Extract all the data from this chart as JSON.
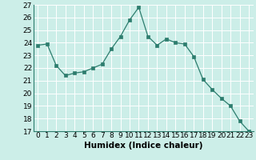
{
  "x": [
    0,
    1,
    2,
    3,
    4,
    5,
    6,
    7,
    8,
    9,
    10,
    11,
    12,
    13,
    14,
    15,
    16,
    17,
    18,
    19,
    20,
    21,
    22,
    23
  ],
  "y": [
    23.8,
    23.9,
    22.2,
    21.4,
    21.6,
    21.7,
    22.0,
    22.3,
    23.5,
    24.5,
    25.8,
    26.8,
    24.5,
    23.8,
    24.3,
    24.0,
    23.9,
    22.9,
    21.1,
    20.3,
    19.6,
    19.0,
    17.8,
    17.0
  ],
  "xlabel": "Humidex (Indice chaleur)",
  "ylim": [
    17,
    27
  ],
  "xlim_min": -0.5,
  "xlim_max": 23.5,
  "yticks": [
    17,
    18,
    19,
    20,
    21,
    22,
    23,
    24,
    25,
    26,
    27
  ],
  "xticks": [
    0,
    1,
    2,
    3,
    4,
    5,
    6,
    7,
    8,
    9,
    10,
    11,
    12,
    13,
    14,
    15,
    16,
    17,
    18,
    19,
    20,
    21,
    22,
    23
  ],
  "line_color": "#2d7d6e",
  "marker_color": "#2d7d6e",
  "bg_color": "#cceee8",
  "grid_color": "#ffffff",
  "tick_fontsize": 6.5,
  "xlabel_fontsize": 7.5,
  "xlabel_fontweight": "bold"
}
